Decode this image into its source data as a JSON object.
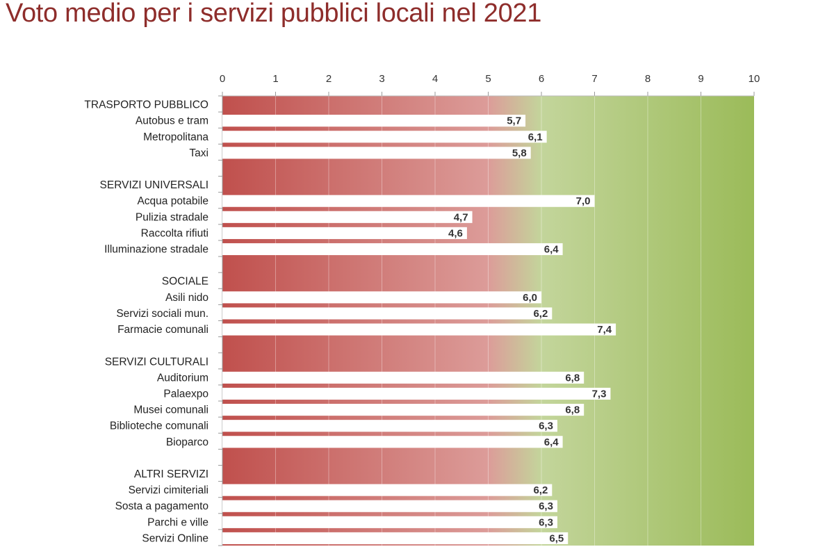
{
  "title": "Voto medio per i servizi pubblici locali nel 2021",
  "chart_data": {
    "type": "bar",
    "orientation": "horizontal",
    "title": "Voto medio per i servizi pubblici locali nel 2021",
    "xlim": [
      0,
      10
    ],
    "xticks": [
      "0",
      "1",
      "2",
      "3",
      "4",
      "5",
      "6",
      "7",
      "8",
      "9",
      "10"
    ],
    "xaxis_position": "top",
    "background": "gradient red-to-green",
    "colors": {
      "red": "#c0504d",
      "mid": "#dc9c99",
      "light_green": "#c3d59b",
      "green": "#9bbb59",
      "bar": "#ffffff"
    },
    "groups": [
      {
        "name": "TRASPORTO PUBBLICO",
        "items": [
          {
            "label": "Autobus e tram",
            "value": 5.7,
            "text": "5,7"
          },
          {
            "label": "Metropolitana",
            "value": 6.1,
            "text": "6,1"
          },
          {
            "label": "Taxi",
            "value": 5.8,
            "text": "5,8"
          }
        ]
      },
      {
        "name": "SERVIZI UNIVERSALI",
        "items": [
          {
            "label": "Acqua potabile",
            "value": 7.0,
            "text": "7,0"
          },
          {
            "label": "Pulizia stradale",
            "value": 4.7,
            "text": "4,7"
          },
          {
            "label": "Raccolta rifiuti",
            "value": 4.6,
            "text": "4,6"
          },
          {
            "label": "Illuminazione stradale",
            "value": 6.4,
            "text": "6,4"
          }
        ]
      },
      {
        "name": "SOCIALE",
        "items": [
          {
            "label": "Asili nido",
            "value": 6.0,
            "text": "6,0"
          },
          {
            "label": "Servizi sociali mun.",
            "value": 6.2,
            "text": "6,2"
          },
          {
            "label": "Farmacie comunali",
            "value": 7.4,
            "text": "7,4"
          }
        ]
      },
      {
        "name": "SERVIZI CULTURALI",
        "items": [
          {
            "label": "Auditorium",
            "value": 6.8,
            "text": "6,8"
          },
          {
            "label": "Palaexpo",
            "value": 7.3,
            "text": "7,3"
          },
          {
            "label": "Musei comunali",
            "value": 6.8,
            "text": "6,8"
          },
          {
            "label": "Biblioteche comunali",
            "value": 6.3,
            "text": "6,3"
          },
          {
            "label": "Bioparco",
            "value": 6.4,
            "text": "6,4"
          }
        ]
      },
      {
        "name": "ALTRI SERVIZI",
        "items": [
          {
            "label": "Servizi cimiteriali",
            "value": 6.2,
            "text": "6,2"
          },
          {
            "label": "Sosta a pagamento",
            "value": 6.3,
            "text": "6,3"
          },
          {
            "label": "Parchi e ville",
            "value": 6.3,
            "text": "6,3"
          },
          {
            "label": "Servizi Online",
            "value": 6.5,
            "text": "6,5"
          }
        ]
      }
    ]
  }
}
